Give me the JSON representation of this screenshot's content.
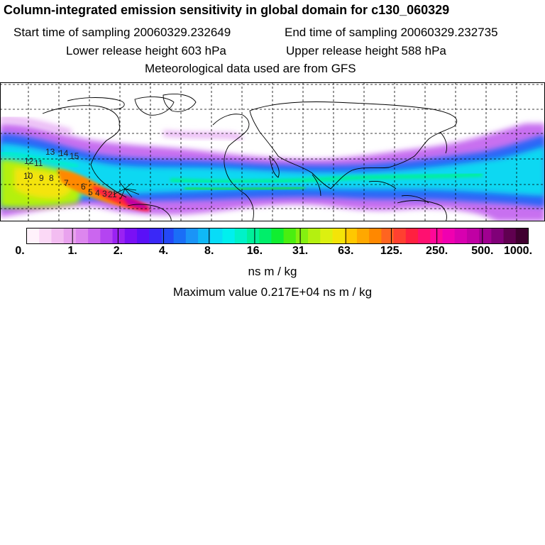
{
  "title": "Column-integrated emission sensitivity in global domain for c130_060329",
  "header": {
    "start": "Start time of sampling 20060329.232649",
    "end": "End time of sampling 20060329.232735",
    "lower": "Lower release height  603 hPa",
    "upper": "Upper release height  588 hPa",
    "met": "Meteorological data used are from GFS"
  },
  "colorbar": {
    "tick_labels": [
      "0.",
      "1.",
      "2.",
      "4.",
      "8.",
      "16.",
      "31.",
      "63.",
      "125.",
      "250.",
      "500.",
      "1000."
    ],
    "colors": [
      "#fff2fb",
      "#fbd9f6",
      "#f3bdf1",
      "#e9a2ee",
      "#dd86ee",
      "#cb66ef",
      "#b444f1",
      "#9a22f3",
      "#7a10f5",
      "#5a10f7",
      "#3a28f7",
      "#2448f7",
      "#1a6ef7",
      "#1a94f7",
      "#10b8f7",
      "#08dcf7",
      "#00f0ee",
      "#00f2c8",
      "#00f09a",
      "#00ee6a",
      "#10ee30",
      "#4aee10",
      "#84f010",
      "#b4f010",
      "#dcf010",
      "#f4e408",
      "#ffc800",
      "#ffa800",
      "#ff8800",
      "#ff6420",
      "#ff4030",
      "#ff2040",
      "#ff1070",
      "#ff0898",
      "#f000b0",
      "#d800b0",
      "#c000a4",
      "#a00090",
      "#800078",
      "#600050",
      "#400030"
    ],
    "units": "ns m / kg"
  },
  "maximum": "Maximum value  0.217E+04 ns m / kg",
  "map_labels": [
    "13",
    "14",
    "15",
    "12",
    "11",
    "10",
    "9",
    "8",
    "7",
    "6",
    "5",
    "4",
    "3",
    "2",
    "1"
  ]
}
